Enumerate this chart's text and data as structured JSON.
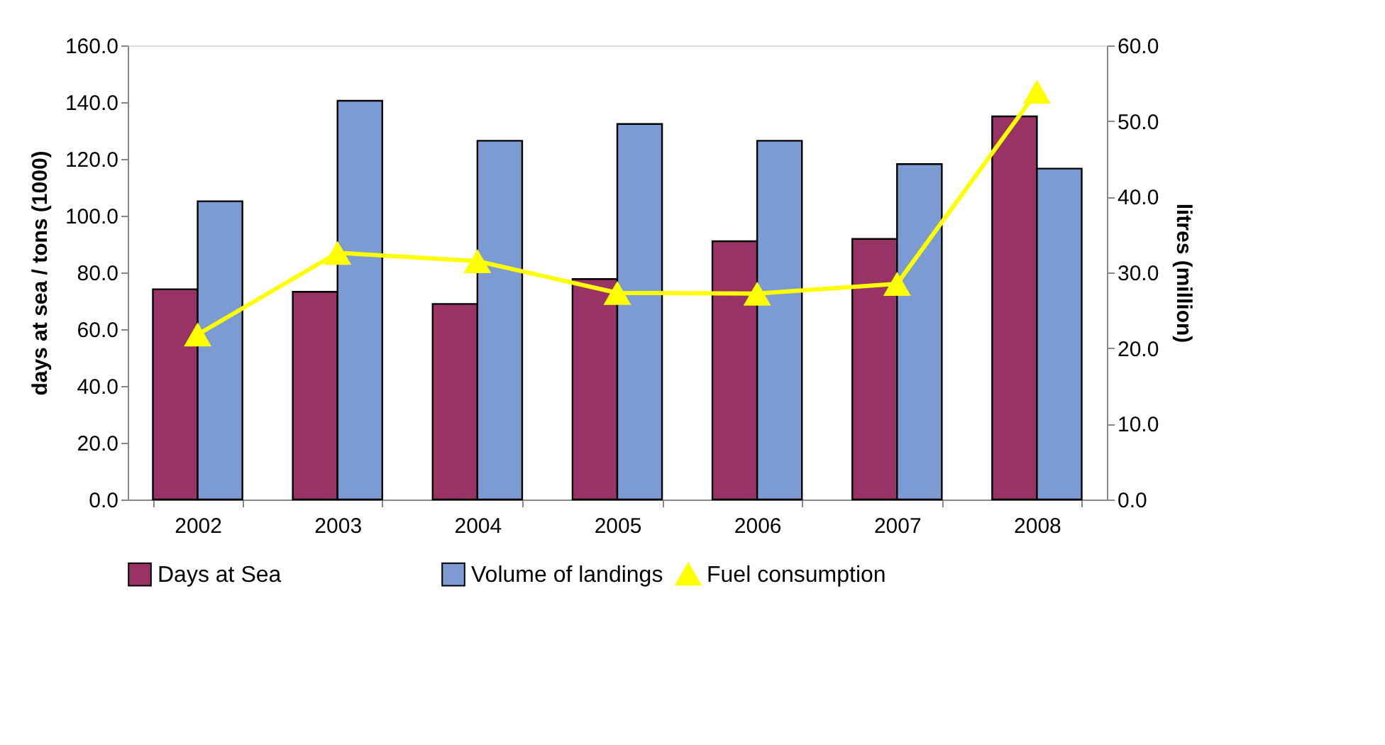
{
  "chart_data": {
    "type": "bar",
    "categories": [
      "2002",
      "2003",
      "2004",
      "2005",
      "2006",
      "2007",
      "2008"
    ],
    "ylabel": "days at sea / tons (1000)",
    "y2label": "litres (million)",
    "ylim": [
      0,
      160
    ],
    "yticks": [
      {
        "value": 0,
        "label": "0.0"
      },
      {
        "value": 20,
        "label": "20.0"
      },
      {
        "value": 40,
        "label": "40.0"
      },
      {
        "value": 60,
        "label": "60.0"
      },
      {
        "value": 80,
        "label": "80.0"
      },
      {
        "value": 100,
        "label": "100.0"
      },
      {
        "value": 120,
        "label": "120.0"
      },
      {
        "value": 140,
        "label": "140.0"
      },
      {
        "value": 160,
        "label": "160.0"
      }
    ],
    "y2lim": [
      0,
      60
    ],
    "y2ticks": [
      {
        "value": 0,
        "label": "0.0"
      },
      {
        "value": 10,
        "label": "10.0"
      },
      {
        "value": 20,
        "label": "20.0"
      },
      {
        "value": 30,
        "label": "30.0"
      },
      {
        "value": 40,
        "label": "40.0"
      },
      {
        "value": 50,
        "label": "50.0"
      },
      {
        "value": 60,
        "label": "60.0"
      }
    ],
    "series": [
      {
        "name": "Days at Sea",
        "color": "#993366",
        "values": [
          74.1,
          73.2,
          68.9,
          77.7,
          91.0,
          91.8,
          135.0
        ]
      },
      {
        "name": "Volume of landings",
        "color": "#7b9bd2",
        "values": [
          105.1,
          140.5,
          126.4,
          132.3,
          126.4,
          118.2,
          116.6
        ]
      },
      {
        "name": "Fuel consumption",
        "type": "line",
        "axis": "y2",
        "color": "#ffff00",
        "marker": "triangle",
        "values": [
          21.8,
          32.6,
          31.5,
          27.3,
          27.2,
          28.5,
          53.9
        ]
      }
    ],
    "grid": false,
    "legend": "bottom"
  }
}
